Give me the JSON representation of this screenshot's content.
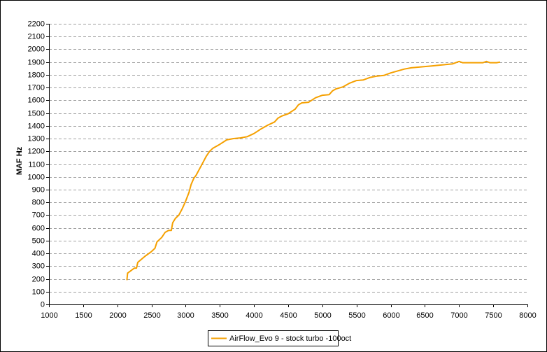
{
  "chart_data": {
    "type": "line",
    "y_label": "MAF Hz",
    "xlim": [
      1000,
      8000
    ],
    "xticks": [
      1000,
      1500,
      2000,
      2500,
      3000,
      3500,
      4000,
      4500,
      5000,
      5500,
      6000,
      6500,
      7000,
      7500,
      8000
    ],
    "ylim": [
      0,
      2200
    ],
    "yticks": [
      0,
      100,
      200,
      300,
      400,
      500,
      600,
      700,
      800,
      900,
      1000,
      1100,
      1200,
      1300,
      1400,
      1500,
      1600,
      1700,
      1800,
      1900,
      2000,
      2100,
      2200
    ],
    "grid": true,
    "legend": "bottom",
    "x": [
      2140,
      2150,
      2200,
      2250,
      2280,
      2300,
      2400,
      2500,
      2550,
      2580,
      2650,
      2700,
      2750,
      2790,
      2810,
      2850,
      2900,
      2950,
      3000,
      3050,
      3080,
      3120,
      3150,
      3200,
      3250,
      3300,
      3350,
      3400,
      3500,
      3600,
      3700,
      3800,
      3900,
      4000,
      4100,
      4200,
      4300,
      4350,
      4400,
      4500,
      4600,
      4650,
      4700,
      4800,
      4900,
      5000,
      5100,
      5150,
      5200,
      5300,
      5400,
      5500,
      5600,
      5700,
      5800,
      5900,
      6000,
      6100,
      6200,
      6300,
      6400,
      6500,
      6600,
      6700,
      6800,
      6900,
      7000,
      7050,
      7200,
      7350,
      7400,
      7450,
      7550,
      7600
    ],
    "series": [
      {
        "name": "AirFlow_Evo 9 - stock turbo -100oct",
        "color": "#f5a000",
        "values": [
          190,
          245,
          265,
          285,
          285,
          330,
          375,
          415,
          440,
          490,
          525,
          565,
          580,
          580,
          640,
          675,
          700,
          750,
          810,
          880,
          940,
          990,
          1010,
          1060,
          1110,
          1160,
          1200,
          1225,
          1255,
          1290,
          1300,
          1305,
          1315,
          1340,
          1375,
          1405,
          1430,
          1460,
          1475,
          1495,
          1530,
          1565,
          1580,
          1585,
          1620,
          1640,
          1645,
          1675,
          1690,
          1705,
          1735,
          1755,
          1760,
          1780,
          1790,
          1795,
          1815,
          1830,
          1845,
          1855,
          1860,
          1865,
          1870,
          1875,
          1880,
          1885,
          1905,
          1895,
          1895,
          1895,
          1905,
          1895,
          1895,
          1900
        ]
      }
    ]
  }
}
